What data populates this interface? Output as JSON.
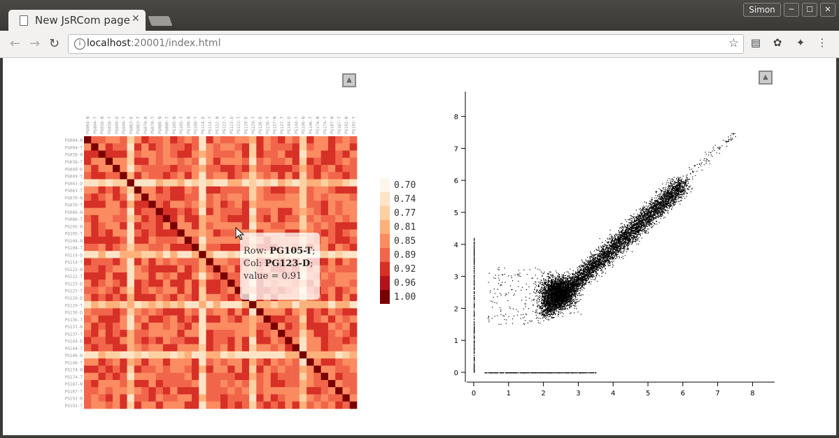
{
  "window": {
    "tab_title": "New JsRCom page",
    "user": "Simon",
    "buttons": {
      "minimize": "─",
      "maximize": "☐",
      "close": "✕"
    }
  },
  "toolbar": {
    "url_host": "localhost",
    "url_rest": ":20001/index.html"
  },
  "heatmap": {
    "labels": [
      "PG004-N",
      "PG004-T",
      "PG038-N",
      "PG038-T",
      "PG049-D",
      "PG049-T",
      "PG063-D",
      "PG063-T",
      "PG070-N",
      "PG070-T",
      "PG086-N",
      "PG086-T",
      "PG105-N",
      "PG105-T",
      "PG108-N",
      "PG108-T",
      "PG114-D",
      "PG114-T",
      "PG122-N",
      "PG122-T",
      "PG123-D",
      "PG123-T",
      "PG129-D",
      "PG129-T",
      "PG136-D",
      "PG136-T",
      "PG137-N",
      "PG137-T",
      "PG144-D",
      "PG144-T",
      "PG146-N",
      "PG146-T",
      "PG174-N",
      "PG174-T",
      "PG187-N",
      "PG187-T",
      "PG192-N",
      "PG192-T"
    ],
    "legend": [
      "0.70",
      "0.74",
      "0.77",
      "0.81",
      "0.85",
      "0.89",
      "0.92",
      "0.96",
      "1.00"
    ],
    "legend_colors": [
      "#fff5eb",
      "#fee4c6",
      "#fdd0a2",
      "#fdb07a",
      "#fb8b61",
      "#f1664a",
      "#d73027",
      "#b2141c",
      "#7a0000"
    ],
    "tooltip": {
      "row_label": "Row:",
      "row": "PG105-T",
      "col_label": "Col:",
      "col": "PG123-D",
      "value_label": "value =",
      "value": "0.91"
    }
  },
  "scatter": {
    "x_ticks": [
      "0",
      "1",
      "2",
      "3",
      "4",
      "5",
      "6",
      "7",
      "8"
    ],
    "y_ticks": [
      "0",
      "1",
      "2",
      "3",
      "4",
      "5",
      "6",
      "7",
      "8"
    ]
  }
}
